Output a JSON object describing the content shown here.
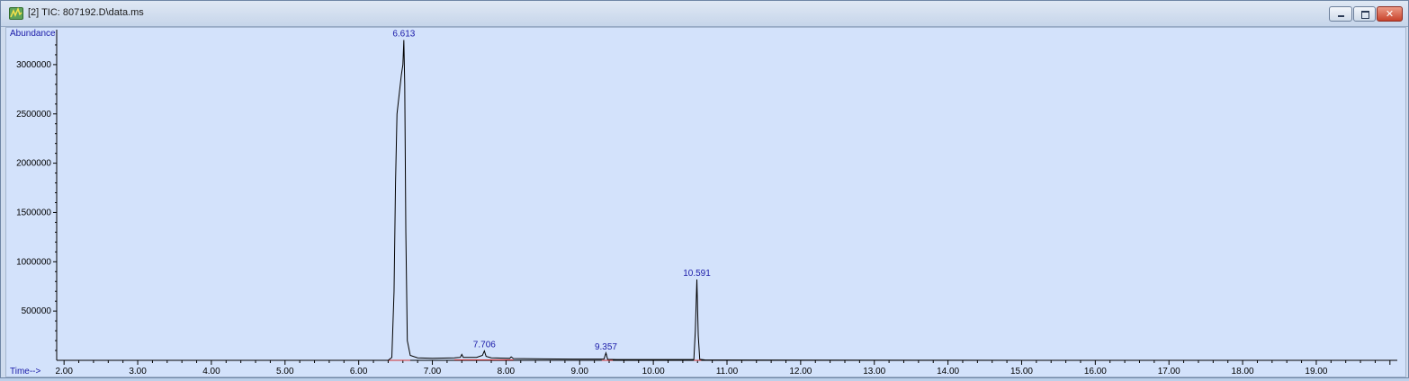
{
  "window": {
    "title": "[2] TIC: 807192.D\\data.ms",
    "app_icon": "chromatogram-app-icon",
    "buttons": {
      "minimize": "minimize-icon",
      "maximize": "maximize-icon",
      "close_glyph": "✕"
    }
  },
  "colors": {
    "plot_background": "#d3e2fb",
    "trace": "#000000",
    "peak_labels": "#1a1aa8",
    "axis_labels": "#1a1aa8",
    "baseline": "#d03030"
  },
  "chart_data": {
    "type": "line",
    "title": "",
    "xlabel": "Time-->",
    "ylabel": "Abundance",
    "xlim": [
      1.9,
      20.1
    ],
    "ylim": [
      0,
      3300000
    ],
    "x_ticks": [
      2.0,
      3.0,
      4.0,
      5.0,
      6.0,
      7.0,
      8.0,
      9.0,
      10.0,
      11.0,
      12.0,
      13.0,
      14.0,
      15.0,
      16.0,
      17.0,
      18.0,
      19.0
    ],
    "x_tick_labels": [
      "2.00",
      "3.00",
      "4.00",
      "5.00",
      "6.00",
      "7.00",
      "8.00",
      "9.00",
      "10.00",
      "11.00",
      "12.00",
      "13.00",
      "14.00",
      "15.00",
      "16.00",
      "17.00",
      "18.00",
      "19.00"
    ],
    "y_ticks": [
      500000,
      1000000,
      1500000,
      2000000,
      2500000,
      3000000
    ],
    "y_tick_labels": [
      "500000",
      "1000000",
      "1500000",
      "2000000",
      "2500000",
      "3000000"
    ],
    "grid": false,
    "series": [
      {
        "name": "",
        "x": [
          1.9,
          6.4,
          6.45,
          6.48,
          6.5,
          6.52,
          6.55,
          6.58,
          6.6,
          6.613,
          6.625,
          6.64,
          6.66,
          6.7,
          6.8,
          7.0,
          7.3,
          7.38,
          7.4,
          7.42,
          7.6,
          7.68,
          7.706,
          7.73,
          7.8,
          8.05,
          8.07,
          8.1,
          8.5,
          9.0,
          9.33,
          9.357,
          9.38,
          9.5,
          10.0,
          10.55,
          10.57,
          10.591,
          10.61,
          10.63,
          10.7,
          11.0,
          12.0,
          14.0,
          16.0,
          20.1
        ],
        "y": [
          0,
          0,
          30000,
          700000,
          1800000,
          2500000,
          2700000,
          2900000,
          3000000,
          3250000,
          2800000,
          1300000,
          200000,
          50000,
          25000,
          20000,
          25000,
          30000,
          60000,
          30000,
          30000,
          50000,
          95000,
          40000,
          25000,
          20000,
          35000,
          18000,
          15000,
          12000,
          12000,
          75000,
          10000,
          8000,
          8000,
          8000,
          300000,
          820000,
          250000,
          10000,
          5000,
          3000,
          2000,
          1000,
          0,
          0
        ]
      }
    ],
    "peaks": [
      {
        "rt": 6.613,
        "label": "6.613",
        "abundance": 3250000
      },
      {
        "rt": 7.706,
        "label": "7.706",
        "abundance": 95000
      },
      {
        "rt": 9.357,
        "label": "9.357",
        "abundance": 75000
      },
      {
        "rt": 10.591,
        "label": "10.591",
        "abundance": 820000
      }
    ],
    "baseline_segments": [
      {
        "x": [
          6.4,
          6.7
        ],
        "y": [
          0,
          0
        ]
      },
      {
        "x": [
          7.3,
          8.1
        ],
        "y": [
          5000,
          5000
        ]
      },
      {
        "x": [
          9.3,
          9.45
        ],
        "y": [
          0,
          0
        ]
      },
      {
        "x": [
          10.55,
          10.65
        ],
        "y": [
          0,
          0
        ]
      }
    ]
  }
}
